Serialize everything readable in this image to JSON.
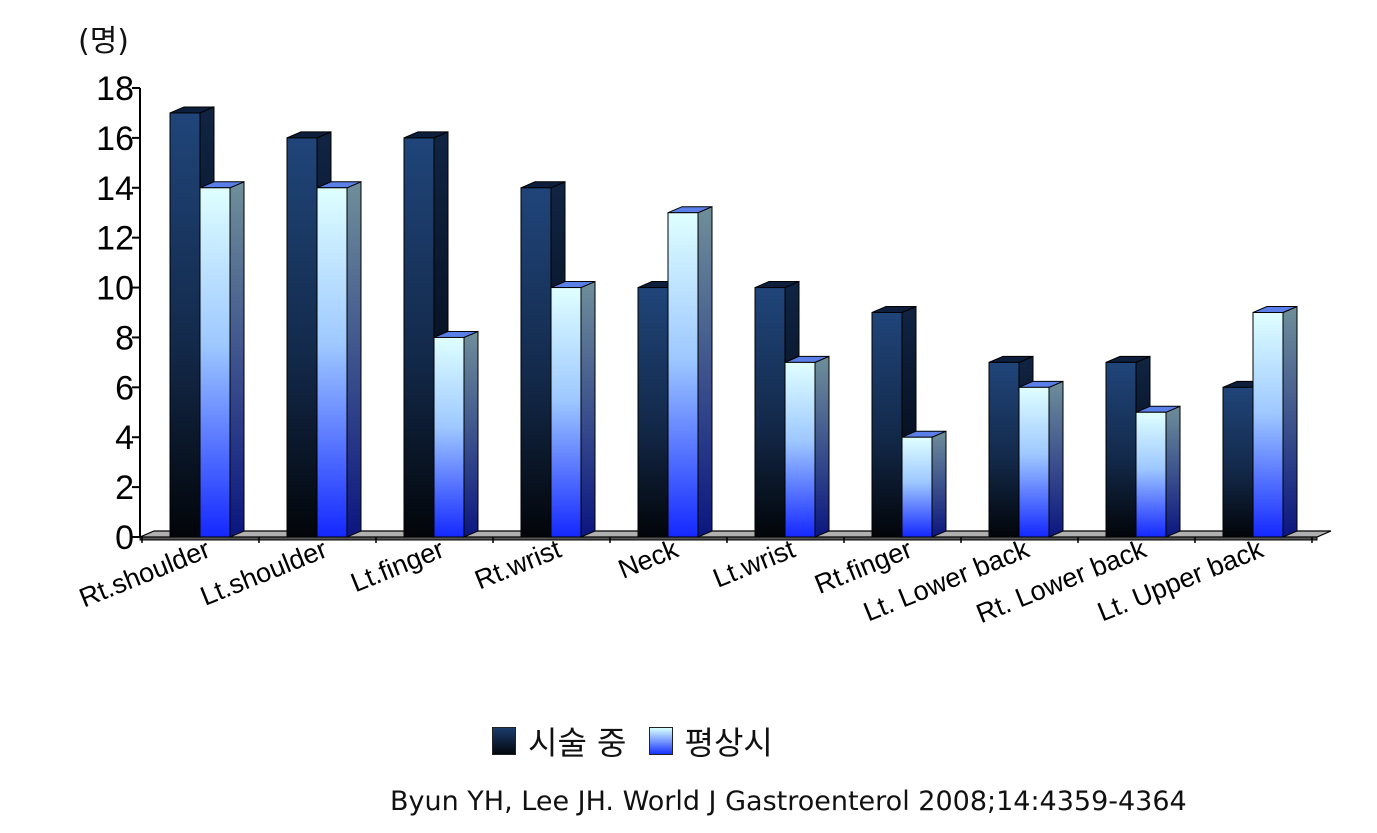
{
  "chart_data": {
    "type": "bar",
    "ylabel": "(명)",
    "ylim": [
      0,
      18
    ],
    "yticks": [
      0,
      2,
      4,
      6,
      8,
      10,
      12,
      14,
      16,
      18
    ],
    "categories": [
      "Rt.shoulder",
      "Lt.shoulder",
      "Lt.finger",
      "Rt.wrist",
      "Neck",
      "Lt.wrist",
      "Rt.finger",
      "Lt. Lower back",
      "Rt. Lower back",
      "Lt. Upper back"
    ],
    "series": [
      {
        "name": "시술 중",
        "values": [
          17,
          16,
          16,
          14,
          10,
          10,
          9,
          7,
          7,
          6
        ],
        "color": "#1d3b6b"
      },
      {
        "name": "평상시",
        "values": [
          14,
          14,
          8,
          10,
          13,
          7,
          4,
          6,
          5,
          9
        ],
        "color": "#9fe8ff"
      }
    ],
    "grid": false,
    "legend_position": "bottom"
  },
  "source": "Byun YH, Lee JH. World J Gastroenterol 2008;14:4359-4364"
}
